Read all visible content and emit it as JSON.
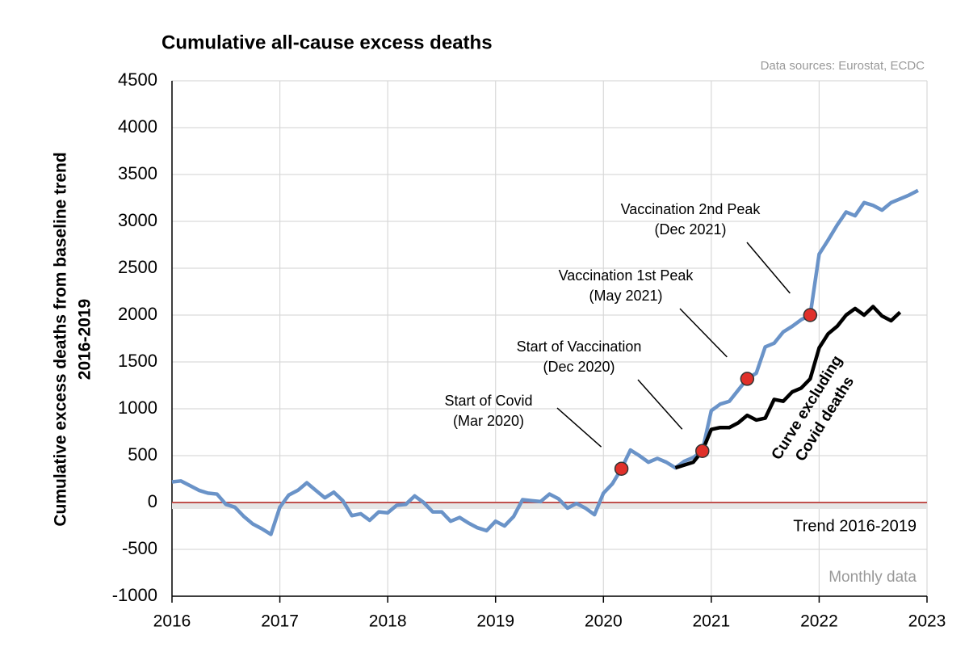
{
  "chart_data": {
    "type": "line",
    "title": "Cumulative all-cause excess deaths",
    "source": "Data sources: Eurostat, ECDC",
    "y_label_lines": [
      "Cumulative excess deaths from baseline trend",
      "2016-2019"
    ],
    "note": "Monthly data",
    "x": [
      2016,
      2016.083,
      2016.167,
      2016.25,
      2016.333,
      2016.417,
      2016.5,
      2016.583,
      2016.667,
      2016.75,
      2016.833,
      2016.917,
      2017,
      2017.083,
      2017.167,
      2017.25,
      2017.333,
      2017.417,
      2017.5,
      2017.583,
      2017.667,
      2017.75,
      2017.833,
      2017.917,
      2018,
      2018.083,
      2018.167,
      2018.25,
      2018.333,
      2018.417,
      2018.5,
      2018.583,
      2018.667,
      2018.75,
      2018.833,
      2018.917,
      2019,
      2019.083,
      2019.167,
      2019.25,
      2019.333,
      2019.417,
      2019.5,
      2019.583,
      2019.667,
      2019.75,
      2019.833,
      2019.917,
      2020,
      2020.083,
      2020.167,
      2020.25,
      2020.333,
      2020.417,
      2020.5,
      2020.583,
      2020.667,
      2020.75,
      2020.833,
      2020.917,
      2021,
      2021.083,
      2021.167,
      2021.25,
      2021.333,
      2021.417,
      2021.5,
      2021.583,
      2021.667,
      2021.75,
      2021.833,
      2021.917,
      2022,
      2022.083,
      2022.167,
      2022.25,
      2022.333,
      2022.417,
      2022.5,
      2022.583,
      2022.667,
      2022.75,
      2022.833,
      2022.917
    ],
    "series": [
      {
        "color": "#6a93c8",
        "values": [
          220,
          230,
          180,
          130,
          100,
          90,
          -20,
          -50,
          -150,
          -230,
          -280,
          -340,
          -50,
          80,
          130,
          210,
          130,
          50,
          110,
          20,
          -140,
          -120,
          -190,
          -100,
          -110,
          -30,
          -20,
          70,
          0,
          -100,
          -100,
          -200,
          -160,
          -220,
          -270,
          -300,
          -200,
          -250,
          -150,
          30,
          20,
          10,
          90,
          40,
          -60,
          -10,
          -60,
          -130,
          100,
          200,
          360,
          560,
          500,
          430,
          470,
          430,
          370,
          440,
          480,
          550,
          980,
          1050,
          1080,
          1200,
          1320,
          1380,
          1660,
          1700,
          1820,
          1880,
          1950,
          2000,
          2650,
          2800,
          2960,
          3100,
          3060,
          3200,
          3170,
          3120,
          3200,
          3240,
          3280,
          3330
        ]
      },
      {
        "color": "#000000",
        "label_lines": [
          "Curve excluding",
          "Covid deaths"
        ],
        "values": [
          null,
          null,
          null,
          null,
          null,
          null,
          null,
          null,
          null,
          null,
          null,
          null,
          null,
          null,
          null,
          null,
          null,
          null,
          null,
          null,
          null,
          null,
          null,
          null,
          null,
          null,
          null,
          null,
          null,
          null,
          null,
          null,
          null,
          null,
          null,
          null,
          null,
          null,
          null,
          null,
          null,
          null,
          null,
          null,
          null,
          null,
          null,
          null,
          null,
          null,
          null,
          null,
          null,
          null,
          null,
          null,
          370,
          400,
          430,
          550,
          780,
          800,
          800,
          850,
          930,
          880,
          900,
          1100,
          1080,
          1180,
          1220,
          1320,
          1650,
          1800,
          1880,
          2000,
          2070,
          2000,
          2090,
          1990,
          1940,
          2030,
          null,
          null
        ]
      }
    ],
    "annotations": [
      {
        "lines": [
          "Start of Covid",
          "(Mar 2020)"
        ],
        "index": 50
      },
      {
        "lines": [
          "Start of Vaccination",
          "(Dec 2020)"
        ],
        "index": 59
      },
      {
        "lines": [
          "Vaccination 1st Peak",
          "(May 2021)"
        ],
        "index": 64
      },
      {
        "lines": [
          "Vaccination 2nd Peak",
          "(Dec 2021)"
        ],
        "index": 71
      }
    ],
    "marker_color": "#e0302a",
    "trend": {
      "label": "Trend 2016-2019",
      "value": 0,
      "color": "#c0504d"
    },
    "xlim": [
      2016,
      2023
    ],
    "xticks": [
      2016,
      2017,
      2018,
      2019,
      2020,
      2021,
      2022,
      2023
    ],
    "ylim": [
      -1000,
      4500
    ],
    "yticks": [
      -1000,
      -500,
      0,
      500,
      1000,
      1500,
      2000,
      2500,
      3000,
      3500,
      4000,
      4500
    ],
    "grid": true
  }
}
